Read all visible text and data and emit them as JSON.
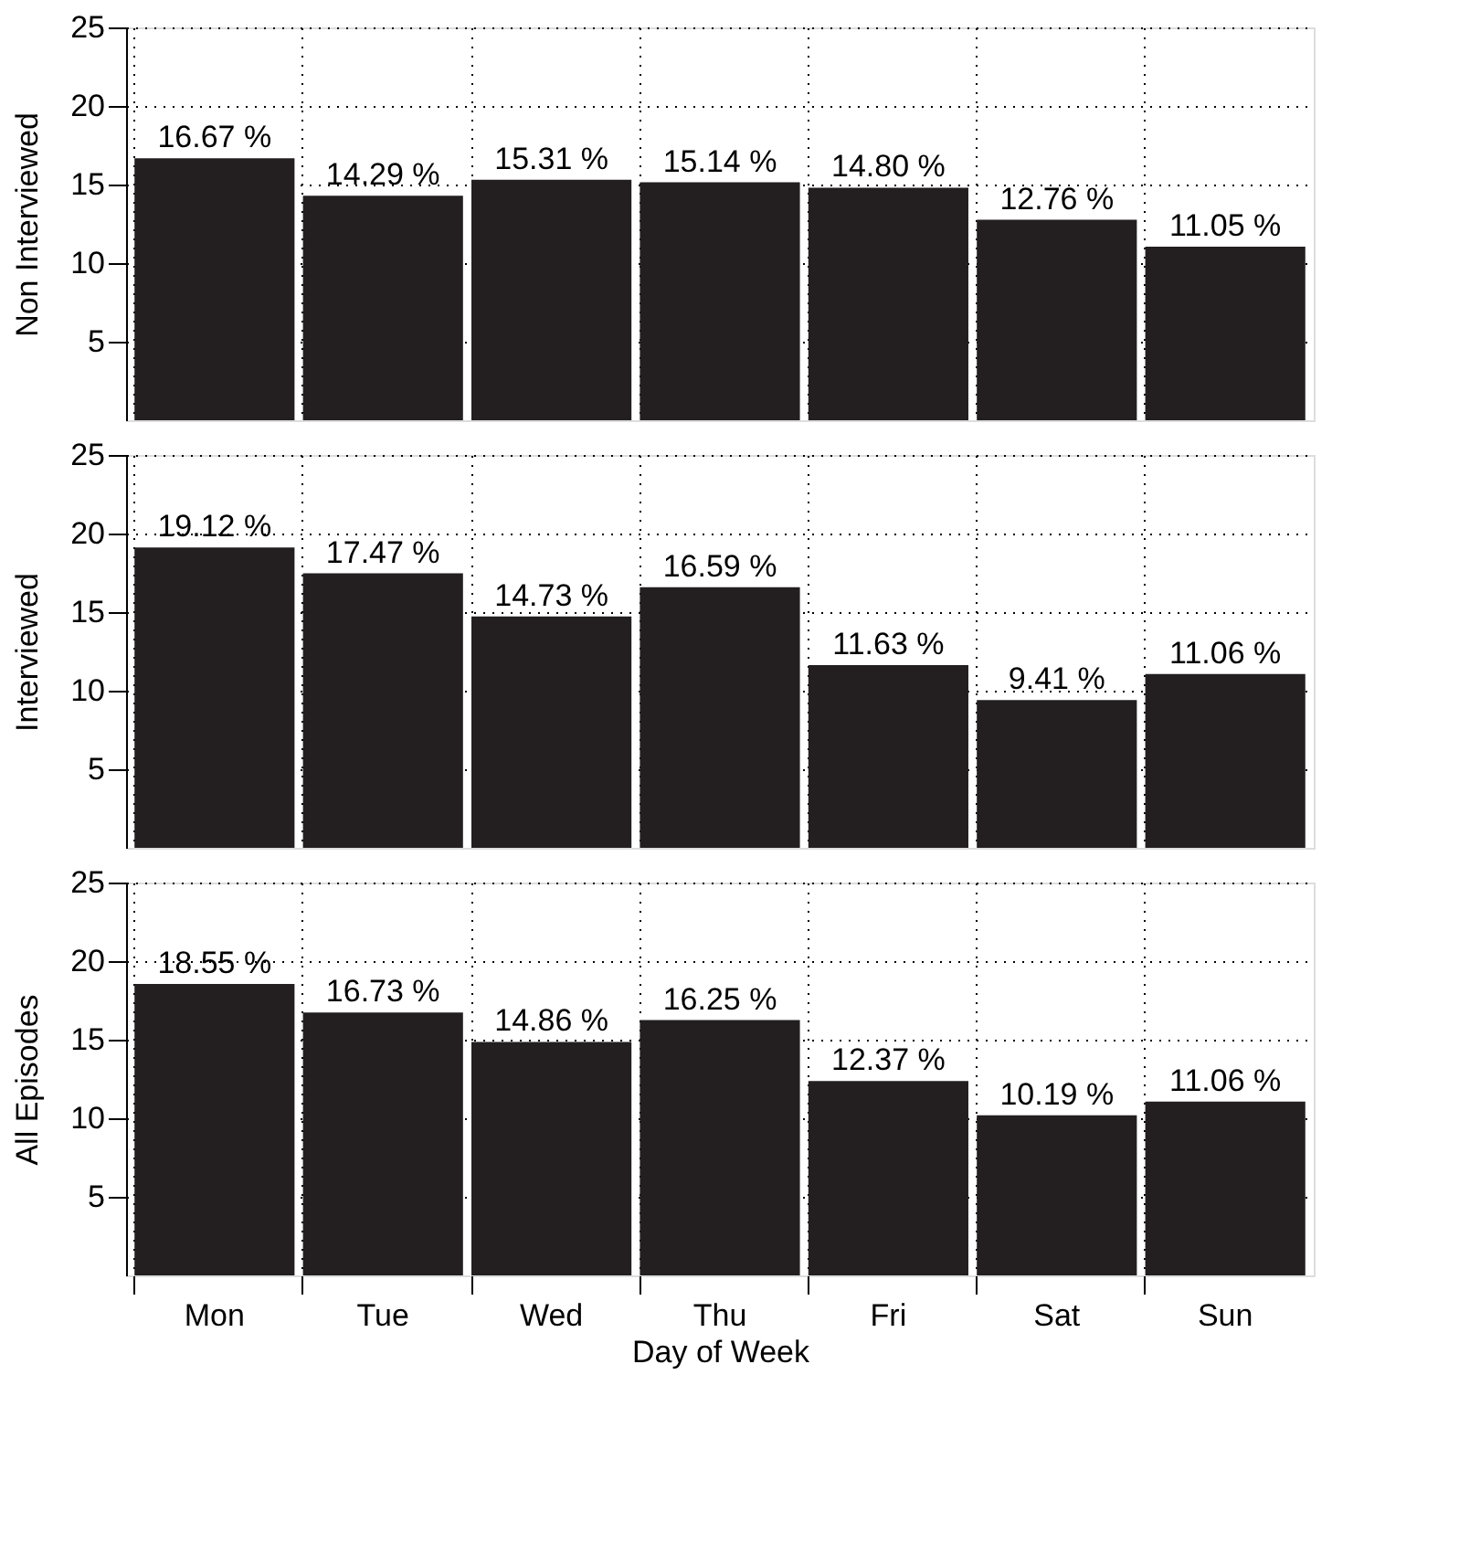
{
  "chart_data": [
    {
      "type": "bar",
      "categories": [
        null,
        null,
        null,
        null,
        null,
        null,
        null
      ],
      "values": [
        16.67,
        14.29,
        15.31,
        15.14,
        14.8,
        12.76,
        11.05
      ],
      "value_labels": [
        "16.67 %",
        "14.29 %",
        "15.31 %",
        "15.14 %",
        "14.80 %",
        "12.76 %",
        "11.05 %"
      ],
      "color": "#231f20",
      "ylabel": "Non Interviewed",
      "ylim": [
        0,
        25
      ],
      "yticks": [
        5,
        10,
        15,
        20,
        25
      ],
      "grid": true,
      "tick_labels": "y"
    },
    {
      "type": "bar",
      "categories": [
        null,
        null,
        null,
        null,
        null,
        null,
        null
      ],
      "values": [
        19.12,
        17.47,
        14.73,
        16.59,
        11.63,
        9.41,
        11.06
      ],
      "value_labels": [
        "19.12 %",
        "17.47 %",
        "14.73 %",
        "16.59 %",
        "11.63 %",
        "9.41 %",
        "11.06 %"
      ],
      "color": "#231f20",
      "ylabel": "Interviewed",
      "ylim": [
        0,
        25
      ],
      "yticks": [
        5,
        10,
        15,
        20,
        25
      ],
      "grid": true,
      "tick_labels": "y"
    },
    {
      "type": "bar",
      "categories": [
        "Mon",
        "Tue",
        "Wed",
        "Thu",
        "Fri",
        "Sat",
        "Sun"
      ],
      "values": [
        18.55,
        16.73,
        14.86,
        16.25,
        12.37,
        10.19,
        11.06
      ],
      "value_labels": [
        "18.55 %",
        "16.73 %",
        "14.86 %",
        "16.25 %",
        "12.37 %",
        "10.19 %",
        "11.06 %"
      ],
      "color": "#231f20",
      "ylabel": "All Episodes",
      "xlabel": "Day of Week",
      "ylim": [
        0,
        25
      ],
      "yticks": [
        5,
        10,
        15,
        20,
        25
      ],
      "grid": true
    }
  ]
}
